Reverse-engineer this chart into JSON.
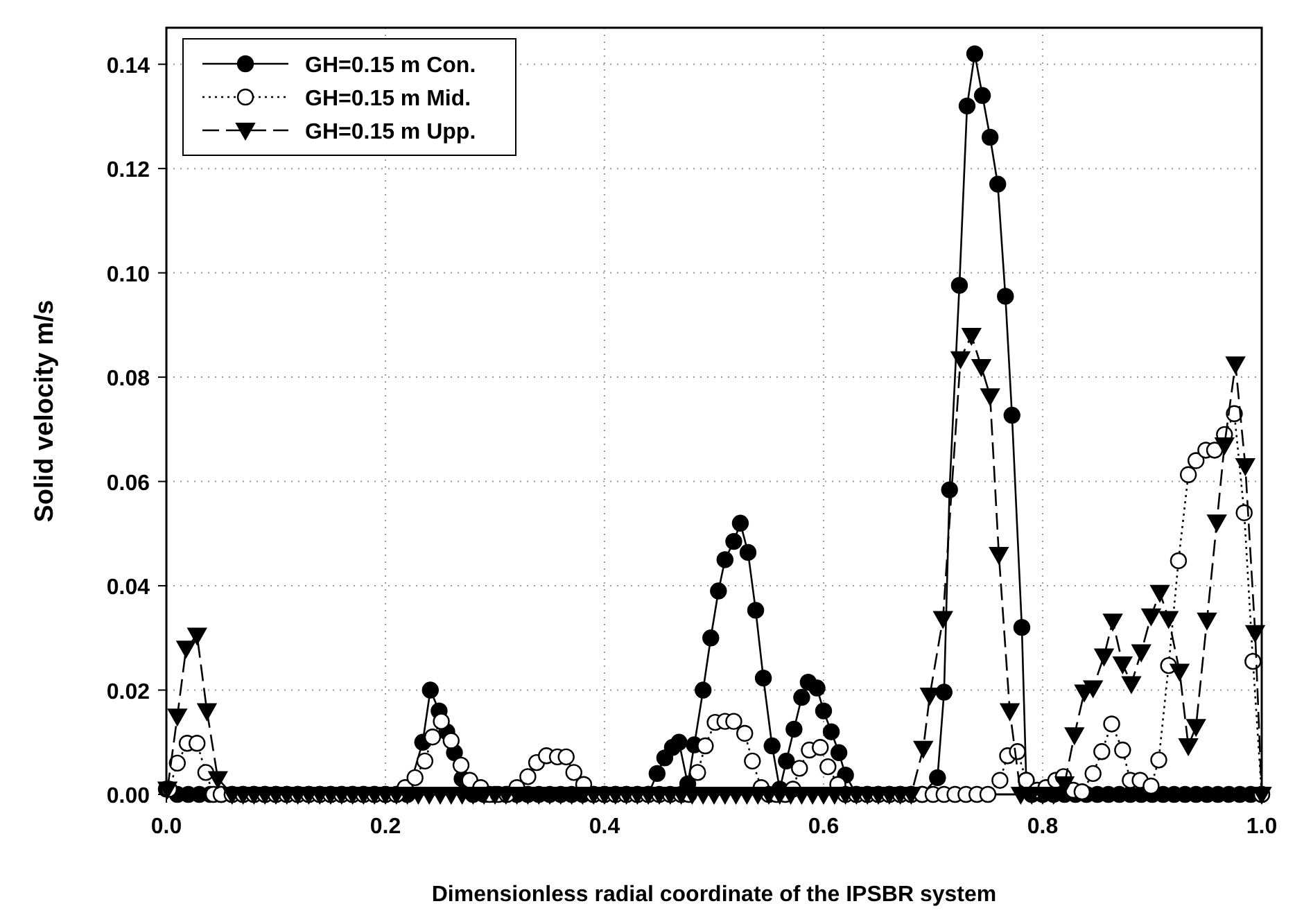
{
  "chart_data": {
    "type": "line",
    "xlabel": "Dimensionless radial coordinate of the IPSBR system",
    "ylabel": "Solid velocity m/s",
    "xlim": [
      0,
      1.0
    ],
    "ylim": [
      0,
      0.147
    ],
    "xticks": [
      {
        "value": 0,
        "label": "0.0"
      },
      {
        "value": 0.2,
        "label": "0.2"
      },
      {
        "value": 0.4,
        "label": "0.4"
      },
      {
        "value": 0.6,
        "label": "0.6"
      },
      {
        "value": 0.8,
        "label": "0.8"
      },
      {
        "value": 1.0,
        "label": "1.0"
      }
    ],
    "yticks": [
      {
        "value": 0,
        "label": "0.00"
      },
      {
        "value": 0.02,
        "label": "0.02"
      },
      {
        "value": 0.04,
        "label": "0.04"
      },
      {
        "value": 0.06,
        "label": "0.06"
      },
      {
        "value": 0.08,
        "label": "0.08"
      },
      {
        "value": 0.1,
        "label": "0.10"
      },
      {
        "value": 0.12,
        "label": "0.12"
      },
      {
        "value": 0.14,
        "label": "0.14"
      }
    ],
    "grid": true,
    "legend": "top left",
    "series": [
      {
        "name": "GH=0.15 m Con.",
        "color": "#000000",
        "marker": "circle",
        "line_style": "solid",
        "x": [
          0,
          0.01,
          0.02,
          0.03,
          0.04,
          0.05,
          0.06,
          0.07,
          0.08,
          0.09,
          0.1,
          0.11,
          0.12,
          0.13,
          0.14,
          0.15,
          0.16,
          0.17,
          0.18,
          0.19,
          0.2,
          0.21,
          0.22,
          0.234,
          0.241,
          0.249,
          0.256,
          0.263,
          0.27,
          0.28,
          0.29,
          0.3,
          0.31,
          0.32,
          0.33,
          0.34,
          0.35,
          0.36,
          0.37,
          0.38,
          0.39,
          0.4,
          0.41,
          0.42,
          0.43,
          0.44,
          0.448,
          0.455,
          0.462,
          0.468,
          0.476,
          0.482,
          0.49,
          0.497,
          0.504,
          0.51,
          0.518,
          0.524,
          0.531,
          0.538,
          0.545,
          0.553,
          0.56,
          0.566,
          0.573,
          0.58,
          0.586,
          0.594,
          0.6,
          0.607,
          0.614,
          0.62,
          0.63,
          0.64,
          0.65,
          0.66,
          0.67,
          0.68,
          0.69,
          0.704,
          0.71,
          0.715,
          0.724,
          0.731,
          0.738,
          0.745,
          0.752,
          0.759,
          0.766,
          0.772,
          0.781,
          0.785,
          0.79,
          0.8,
          0.81,
          0.82,
          0.83,
          0.84,
          0.85,
          0.86,
          0.87,
          0.88,
          0.89,
          0.9,
          0.91,
          0.92,
          0.93,
          0.94,
          0.95,
          0.96,
          0.97,
          0.98,
          0.99,
          1.0
        ],
        "values": [
          0.001,
          0,
          0,
          0,
          0,
          0,
          0,
          0,
          0,
          0,
          0,
          0,
          0,
          0,
          0,
          0,
          0,
          0,
          0,
          0,
          0,
          0,
          0,
          0.01,
          0.02,
          0.016,
          0.012,
          0.008,
          0.003,
          0,
          0,
          0,
          0,
          0,
          0,
          0,
          0,
          0,
          0,
          0,
          0,
          0,
          0,
          0,
          0,
          0,
          0.004,
          0.007,
          0.009,
          0.01,
          0.002,
          0.0095,
          0.02,
          0.03,
          0.039,
          0.045,
          0.0485,
          0.052,
          0.0464,
          0.0353,
          0.0223,
          0.0093,
          0.001,
          0.0064,
          0.0125,
          0.0186,
          0.0215,
          0.0204,
          0.016,
          0.012,
          0.008,
          0.0037,
          0,
          0,
          0,
          0,
          0,
          0,
          0,
          0.0032,
          0.0196,
          0.0584,
          0.0976,
          0.132,
          0.142,
          0.134,
          0.126,
          0.117,
          0.0955,
          0.0727,
          0.032,
          0.0027,
          0,
          0,
          0,
          0,
          0,
          0,
          0,
          0,
          0,
          0,
          0,
          0,
          0,
          0,
          0,
          0,
          0,
          0,
          0,
          0,
          0,
          0
        ]
      },
      {
        "name": "GH=0.15 m Mid.",
        "color": "#000000",
        "marker": "circle",
        "line_style": "dotted",
        "x": [
          0.0025,
          0.01,
          0.019,
          0.028,
          0.036,
          0.043,
          0.05,
          0.06,
          0.07,
          0.08,
          0.09,
          0.1,
          0.11,
          0.12,
          0.13,
          0.14,
          0.15,
          0.16,
          0.17,
          0.18,
          0.19,
          0.2,
          0.21,
          0.218,
          0.227,
          0.236,
          0.243,
          0.251,
          0.26,
          0.269,
          0.277,
          0.287,
          0.295,
          0.303,
          0.311,
          0.32,
          0.33,
          0.338,
          0.347,
          0.357,
          0.365,
          0.372,
          0.381,
          0.39,
          0.4,
          0.41,
          0.42,
          0.43,
          0.44,
          0.45,
          0.46,
          0.47,
          0.477,
          0.485,
          0.492,
          0.501,
          0.51,
          0.518,
          0.528,
          0.535,
          0.543,
          0.55,
          0.557,
          0.565,
          0.572,
          0.578,
          0.587,
          0.597,
          0.604,
          0.613,
          0.62,
          0.63,
          0.64,
          0.65,
          0.66,
          0.67,
          0.68,
          0.69,
          0.7,
          0.71,
          0.72,
          0.73,
          0.74,
          0.75,
          0.761,
          0.768,
          0.777,
          0.785,
          0.795,
          0.803,
          0.812,
          0.819,
          0.828,
          0.836,
          0.846,
          0.854,
          0.863,
          0.873,
          0.88,
          0.889,
          0.899,
          0.906,
          0.915,
          0.924,
          0.933,
          0.94,
          0.949,
          0.957,
          0.966,
          0.975,
          0.984,
          0.992,
          1.0
        ],
        "values": [
          0.001,
          0.006,
          0.0098,
          0.0098,
          0.0042,
          0,
          0,
          0,
          0,
          0,
          0,
          0,
          0,
          0,
          0,
          0,
          0,
          0,
          0,
          0,
          0,
          0,
          0,
          0.0013,
          0.0032,
          0.0064,
          0.011,
          0.014,
          0.0103,
          0.0056,
          0.0027,
          0.0013,
          0,
          0,
          0,
          0.0013,
          0.0034,
          0.0061,
          0.0074,
          0.0072,
          0.0072,
          0.0042,
          0.0019,
          0,
          0,
          0,
          0,
          0,
          0,
          0,
          0,
          0,
          0,
          0.0042,
          0.0093,
          0.0138,
          0.014,
          0.014,
          0.0117,
          0.0064,
          0.0013,
          0,
          0,
          0,
          0.001,
          0.005,
          0.0085,
          0.009,
          0.0053,
          0.0019,
          0,
          0,
          0,
          0,
          0,
          0,
          0,
          0,
          0,
          0,
          0,
          0,
          0,
          0,
          0.0027,
          0.0074,
          0.0082,
          0.0027,
          0.0008,
          0.0013,
          0.0027,
          0.0034,
          0.0008,
          0.0005,
          0.004,
          0.0082,
          0.0135,
          0.0085,
          0.0027,
          0.0027,
          0.0016,
          0.0066,
          0.0247,
          0.0448,
          0.0613,
          0.064,
          0.066,
          0.066,
          0.069,
          0.073,
          0.054,
          0.0255,
          0
        ]
      },
      {
        "name": "GH=0.15 m Upp.",
        "color": "#000000",
        "marker": "triangle",
        "line_style": "dashed",
        "x": [
          0.001,
          0.01,
          0.018,
          0.028,
          0.037,
          0.047,
          0.06,
          0.07,
          0.08,
          0.09,
          0.1,
          0.11,
          0.12,
          0.13,
          0.14,
          0.15,
          0.16,
          0.17,
          0.18,
          0.19,
          0.2,
          0.21,
          0.22,
          0.23,
          0.24,
          0.25,
          0.26,
          0.27,
          0.28,
          0.29,
          0.3,
          0.31,
          0.32,
          0.33,
          0.34,
          0.35,
          0.36,
          0.37,
          0.38,
          0.39,
          0.4,
          0.41,
          0.42,
          0.43,
          0.44,
          0.45,
          0.46,
          0.47,
          0.48,
          0.49,
          0.5,
          0.51,
          0.52,
          0.53,
          0.54,
          0.55,
          0.56,
          0.57,
          0.58,
          0.59,
          0.6,
          0.61,
          0.62,
          0.63,
          0.64,
          0.65,
          0.66,
          0.67,
          0.68,
          0.691,
          0.697,
          0.709,
          0.725,
          0.735,
          0.744,
          0.752,
          0.76,
          0.77,
          0.78,
          0.79,
          0.8,
          0.81,
          0.82,
          0.829,
          0.838,
          0.846,
          0.856,
          0.864,
          0.873,
          0.881,
          0.89,
          0.899,
          0.907,
          0.915,
          0.925,
          0.933,
          0.94,
          0.95,
          0.959,
          0.966,
          0.976,
          0.985,
          0.994,
          1.0
        ],
        "values": [
          0.001,
          0.015,
          0.028,
          0.0305,
          0.016,
          0.003,
          0,
          0,
          0,
          0,
          0,
          0,
          0,
          0,
          0,
          0,
          0,
          0,
          0,
          0,
          0,
          0,
          0,
          0,
          0,
          0,
          0,
          0,
          0,
          0,
          0,
          0,
          0,
          0,
          0,
          0,
          0,
          0,
          0,
          0,
          0,
          0,
          0,
          0,
          0,
          0,
          0,
          0,
          0,
          0,
          0,
          0,
          0,
          0,
          0,
          0,
          0,
          0,
          0,
          0,
          0,
          0,
          0,
          0,
          0,
          0,
          0,
          0,
          0,
          0.0088,
          0.019,
          0.0337,
          0.0835,
          0.088,
          0.082,
          0.0764,
          0.046,
          0.016,
          0,
          0,
          0,
          0,
          0.002,
          0.0114,
          0.0196,
          0.0204,
          0.0265,
          0.0332,
          0.025,
          0.0212,
          0.0273,
          0.0342,
          0.0387,
          0.0337,
          0.0236,
          0.0093,
          0.013,
          0.0334,
          0.0522,
          0.067,
          0.0825,
          0.063,
          0.031,
          0
        ]
      }
    ]
  }
}
